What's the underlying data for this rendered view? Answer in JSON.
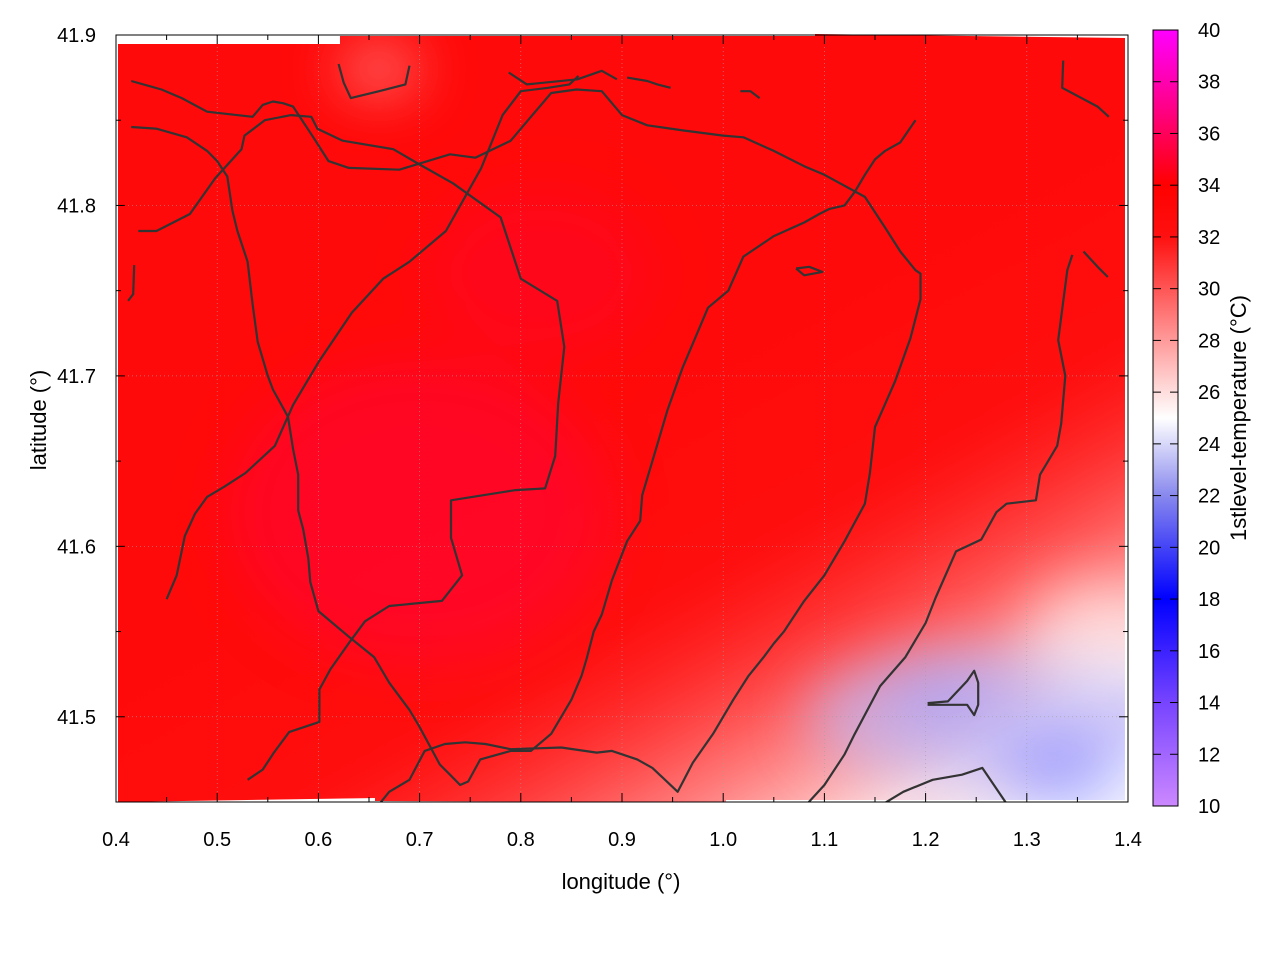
{
  "chart_data": {
    "type": "heatmap",
    "title": "",
    "xlabel": "longitude (°)",
    "ylabel": "latitude (°)",
    "colorbar_label": "1stlevel-temperature (°C)",
    "xlim": [
      0.4,
      1.4
    ],
    "ylim": [
      41.45,
      41.9
    ],
    "x_ticks": [
      0.4,
      0.5,
      0.6,
      0.7,
      0.8,
      0.9,
      1.0,
      1.1,
      1.2,
      1.3,
      1.4
    ],
    "x_tick_labels": [
      "0.4",
      "0.5",
      "0.6",
      "0.7",
      "0.8",
      "0.9",
      "1.0",
      "1.1",
      "1.2",
      "1.3",
      "1.4"
    ],
    "y_ticks": [
      41.5,
      41.6,
      41.7,
      41.8,
      41.9
    ],
    "y_tick_labels": [
      "41.5",
      "41.6",
      "41.7",
      "41.8",
      "41.9"
    ],
    "colorbar_range": [
      10,
      40
    ],
    "colorbar_ticks": [
      10,
      12,
      14,
      16,
      18,
      20,
      22,
      24,
      26,
      28,
      30,
      32,
      34,
      36,
      38,
      40
    ],
    "colorbar_tick_labels": [
      "10",
      "12",
      "14",
      "16",
      "18",
      "20",
      "22",
      "24",
      "26",
      "28",
      "30",
      "32",
      "34",
      "36",
      "38",
      "40"
    ],
    "colormap": [
      {
        "v": 10,
        "color": "#cc88ff"
      },
      {
        "v": 14,
        "color": "#7744ff"
      },
      {
        "v": 18,
        "color": "#0000ff"
      },
      {
        "v": 22,
        "color": "#8888ee"
      },
      {
        "v": 25,
        "color": "#ffffff"
      },
      {
        "v": 28,
        "color": "#ff9a9a"
      },
      {
        "v": 32,
        "color": "#ff1010"
      },
      {
        "v": 34,
        "color": "#ff0000"
      },
      {
        "v": 37,
        "color": "#ff0088"
      },
      {
        "v": 40,
        "color": "#ff00ff"
      }
    ],
    "grid": true,
    "grid_color": "#a0a0a0",
    "contour_color": "#333333",
    "field_summary": "Warmest (about 33-34 °C) over the west and centre; temperatures fall toward the south-east corner to about 24-25 °C.",
    "contours": [
      [
        [
          0.415,
          41.873
        ],
        [
          0.445,
          41.868
        ],
        [
          0.465,
          41.863
        ],
        [
          0.49,
          41.855
        ],
        [
          0.535,
          41.852
        ],
        [
          0.545,
          41.859
        ],
        [
          0.555,
          41.861
        ],
        [
          0.565,
          41.86
        ],
        [
          0.575,
          41.858
        ],
        [
          0.595,
          41.84
        ],
        [
          0.61,
          41.826
        ],
        [
          0.63,
          41.822
        ],
        [
          0.68,
          41.821
        ],
        [
          0.73,
          41.83
        ],
        [
          0.755,
          41.828
        ],
        [
          0.79,
          41.838
        ],
        [
          0.81,
          41.852
        ],
        [
          0.83,
          41.866
        ],
        [
          0.855,
          41.868
        ],
        [
          0.88,
          41.867
        ],
        [
          0.9,
          41.853
        ],
        [
          0.925,
          41.847
        ],
        [
          0.96,
          41.844
        ],
        [
          1.0,
          41.841
        ],
        [
          1.02,
          41.84
        ],
        [
          1.05,
          41.832
        ],
        [
          1.08,
          41.823
        ],
        [
          1.1,
          41.818
        ],
        [
          1.14,
          41.805
        ],
        [
          1.16,
          41.787
        ],
        [
          1.175,
          41.773
        ],
        [
          1.19,
          41.762
        ],
        [
          1.195,
          41.76
        ],
        [
          1.195,
          41.745
        ],
        [
          1.185,
          41.722
        ],
        [
          1.17,
          41.697
        ],
        [
          1.15,
          41.67
        ],
        [
          1.145,
          41.643
        ],
        [
          1.14,
          41.625
        ],
        [
          1.12,
          41.603
        ],
        [
          1.1,
          41.583
        ],
        [
          1.08,
          41.568
        ],
        [
          1.06,
          41.55
        ],
        [
          1.05,
          41.543
        ],
        [
          1.04,
          41.535
        ],
        [
          1.025,
          41.524
        ],
        [
          1.01,
          41.51
        ],
        [
          0.99,
          41.49
        ],
        [
          0.97,
          41.473
        ],
        [
          0.955,
          41.456
        ],
        [
          0.93,
          41.47
        ],
        [
          0.915,
          41.475
        ],
        [
          0.89,
          41.48
        ],
        [
          0.875,
          41.479
        ],
        [
          0.84,
          41.482
        ],
        [
          0.79,
          41.481
        ],
        [
          0.765,
          41.484
        ],
        [
          0.745,
          41.485
        ],
        [
          0.725,
          41.484
        ],
        [
          0.705,
          41.48
        ],
        [
          0.69,
          41.463
        ],
        [
          0.67,
          41.456
        ],
        [
          0.655,
          41.445
        ]
      ],
      [
        [
          0.415,
          41.846
        ],
        [
          0.44,
          41.845
        ],
        [
          0.47,
          41.84
        ],
        [
          0.49,
          41.832
        ],
        [
          0.5,
          41.826
        ],
        [
          0.51,
          41.817
        ],
        [
          0.515,
          41.797
        ],
        [
          0.52,
          41.785
        ],
        [
          0.53,
          41.767
        ],
        [
          0.535,
          41.742
        ],
        [
          0.54,
          41.72
        ],
        [
          0.55,
          41.7
        ],
        [
          0.555,
          41.692
        ],
        [
          0.57,
          41.676
        ],
        [
          0.575,
          41.657
        ],
        [
          0.58,
          41.642
        ],
        [
          0.58,
          41.621
        ],
        [
          0.585,
          41.61
        ],
        [
          0.59,
          41.593
        ],
        [
          0.592,
          41.579
        ],
        [
          0.6,
          41.562
        ],
        [
          0.63,
          41.547
        ],
        [
          0.655,
          41.535
        ],
        [
          0.67,
          41.52
        ],
        [
          0.69,
          41.504
        ],
        [
          0.7,
          41.494
        ],
        [
          0.72,
          41.472
        ],
        [
          0.73,
          41.466
        ],
        [
          0.74,
          41.46
        ],
        [
          0.748,
          41.462
        ],
        [
          0.76,
          41.475
        ],
        [
          0.79,
          41.48
        ],
        [
          0.81,
          41.48
        ],
        [
          0.83,
          41.49
        ],
        [
          0.85,
          41.51
        ],
        [
          0.86,
          41.524
        ],
        [
          0.865,
          41.534
        ],
        [
          0.872,
          41.55
        ],
        [
          0.88,
          41.56
        ],
        [
          0.89,
          41.58
        ],
        [
          0.905,
          41.603
        ],
        [
          0.918,
          41.615
        ],
        [
          0.92,
          41.63
        ],
        [
          0.93,
          41.65
        ],
        [
          0.945,
          41.68
        ],
        [
          0.96,
          41.705
        ],
        [
          0.975,
          41.726
        ],
        [
          0.985,
          41.74
        ],
        [
          1.005,
          41.75
        ],
        [
          1.02,
          41.77
        ],
        [
          1.05,
          41.782
        ],
        [
          1.08,
          41.79
        ],
        [
          1.095,
          41.795
        ],
        [
          1.105,
          41.798
        ],
        [
          1.12,
          41.8
        ],
        [
          1.13,
          41.808
        ],
        [
          1.14,
          41.818
        ],
        [
          1.15,
          41.827
        ],
        [
          1.16,
          41.832
        ],
        [
          1.175,
          41.837
        ],
        [
          1.19,
          41.85
        ]
      ],
      [
        [
          0.53,
          41.463
        ],
        [
          0.545,
          41.469
        ],
        [
          0.556,
          41.479
        ],
        [
          0.571,
          41.491
        ],
        [
          0.601,
          41.497
        ],
        [
          0.601,
          41.516
        ],
        [
          0.612,
          41.528
        ],
        [
          0.631,
          41.544
        ],
        [
          0.646,
          41.556
        ],
        [
          0.67,
          41.565
        ],
        [
          0.722,
          41.568
        ],
        [
          0.742,
          41.583
        ],
        [
          0.731,
          41.605
        ],
        [
          0.731,
          41.627
        ],
        [
          0.795,
          41.633
        ],
        [
          0.824,
          41.634
        ],
        [
          0.834,
          41.653
        ],
        [
          0.837,
          41.684
        ],
        [
          0.843,
          41.717
        ],
        [
          0.836,
          41.744
        ],
        [
          0.8,
          41.757
        ],
        [
          0.78,
          41.793
        ],
        [
          0.733,
          41.813
        ],
        [
          0.7,
          41.824
        ],
        [
          0.674,
          41.833
        ],
        [
          0.624,
          41.838
        ],
        [
          0.599,
          41.845
        ],
        [
          0.593,
          41.852
        ],
        [
          0.573,
          41.853
        ],
        [
          0.547,
          41.85
        ],
        [
          0.527,
          41.841
        ],
        [
          0.524,
          41.833
        ],
        [
          0.498,
          41.816
        ],
        [
          0.473,
          41.795
        ],
        [
          0.44,
          41.785
        ],
        [
          0.422,
          41.785
        ]
      ],
      [
        [
          0.45,
          41.569
        ],
        [
          0.46,
          41.583
        ],
        [
          0.468,
          41.606
        ],
        [
          0.478,
          41.619
        ],
        [
          0.49,
          41.629
        ],
        [
          0.507,
          41.635
        ],
        [
          0.528,
          41.643
        ],
        [
          0.557,
          41.659
        ],
        [
          0.575,
          41.683
        ],
        [
          0.6,
          41.708
        ],
        [
          0.633,
          41.737
        ],
        [
          0.664,
          41.757
        ],
        [
          0.69,
          41.767
        ],
        [
          0.726,
          41.785
        ],
        [
          0.761,
          41.822
        ],
        [
          0.782,
          41.853
        ],
        [
          0.8,
          41.867
        ],
        [
          0.827,
          41.869
        ],
        [
          0.848,
          41.871
        ],
        [
          0.857,
          41.876
        ]
      ],
      [
        [
          0.62,
          41.883
        ],
        [
          0.625,
          41.872
        ],
        [
          0.632,
          41.863
        ],
        [
          0.66,
          41.867
        ],
        [
          0.686,
          41.871
        ],
        [
          0.69,
          41.882
        ]
      ],
      [
        [
          0.788,
          41.878
        ],
        [
          0.806,
          41.871
        ],
        [
          0.856,
          41.874
        ],
        [
          0.88,
          41.879
        ],
        [
          0.895,
          41.874
        ]
      ],
      [
        [
          0.905,
          41.875
        ],
        [
          0.925,
          41.873
        ],
        [
          0.935,
          41.871
        ],
        [
          0.948,
          41.869
        ]
      ],
      [
        [
          1.017,
          41.867
        ],
        [
          1.027,
          41.867
        ],
        [
          1.036,
          41.863
        ]
      ],
      [
        [
          1.336,
          41.885
        ],
        [
          1.335,
          41.869
        ],
        [
          1.37,
          41.858
        ],
        [
          1.381,
          41.852
        ]
      ],
      [
        [
          1.356,
          41.773
        ],
        [
          1.37,
          41.764
        ],
        [
          1.38,
          41.758
        ]
      ],
      [
        [
          1.345,
          41.771
        ],
        [
          1.34,
          41.762
        ],
        [
          1.331,
          41.721
        ],
        [
          1.338,
          41.7
        ],
        [
          1.334,
          41.672
        ],
        [
          1.33,
          41.659
        ],
        [
          1.313,
          41.642
        ],
        [
          1.309,
          41.627
        ],
        [
          1.28,
          41.625
        ],
        [
          1.27,
          41.62
        ],
        [
          1.255,
          41.604
        ],
        [
          1.23,
          41.597
        ],
        [
          1.21,
          41.57
        ],
        [
          1.2,
          41.555
        ],
        [
          1.18,
          41.535
        ],
        [
          1.155,
          41.518
        ],
        [
          1.13,
          41.49
        ],
        [
          1.12,
          41.478
        ],
        [
          1.1,
          41.46
        ],
        [
          1.08,
          41.447
        ],
        [
          1.06,
          41.433
        ],
        [
          1.05,
          41.419
        ],
        [
          1.038,
          41.405
        ]
      ],
      [
        [
          1.153,
          41.447
        ],
        [
          1.178,
          41.456
        ],
        [
          1.207,
          41.463
        ],
        [
          1.236,
          41.466
        ],
        [
          1.256,
          41.47
        ],
        [
          1.28,
          41.449
        ]
      ],
      [
        [
          1.202,
          41.507
        ],
        [
          1.241,
          41.507
        ],
        [
          1.248,
          41.501
        ],
        [
          1.252,
          41.507
        ],
        [
          1.252,
          41.52
        ],
        [
          1.248,
          41.527
        ],
        [
          1.241,
          41.521
        ],
        [
          1.222,
          41.509
        ],
        [
          1.202,
          41.508
        ]
      ],
      [
        [
          0.418,
          41.765
        ],
        [
          0.417,
          41.748
        ],
        [
          0.412,
          41.744
        ]
      ],
      [
        [
          1.072,
          41.763
        ],
        [
          1.085,
          41.764
        ],
        [
          1.098,
          41.761
        ],
        [
          1.08,
          41.759
        ],
        [
          1.072,
          41.763
        ]
      ]
    ]
  }
}
